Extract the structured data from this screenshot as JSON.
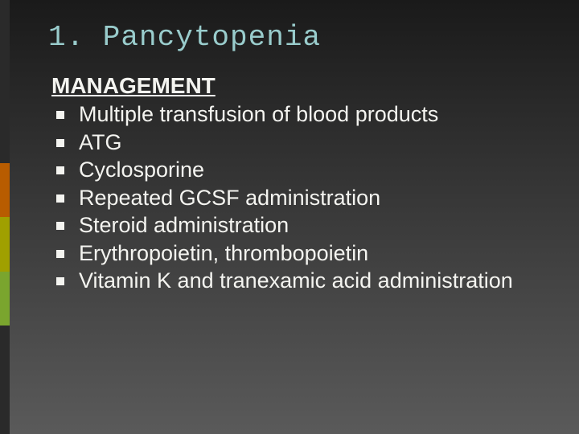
{
  "slide": {
    "title": "1. Pancytopenia",
    "title_color": "#99cccc",
    "subhead": "MANAGEMENT",
    "text_color": "#f4f4f0",
    "bullets": [
      "Multiple transfusion of blood products",
      "ATG",
      "Cyclosporine",
      "Repeated GCSF administration",
      "Steroid administration",
      "Erythropoietin, thrombopoietin",
      "Vitamin K and tranexamic acid administration"
    ],
    "accent_colors": [
      "#2a2a2a",
      "#2a2a2a",
      "#2a2a2a",
      "#b85c00",
      "#a0a000",
      "#7aa52e",
      "#2a2a2a",
      "#2a2a2a"
    ],
    "background_gradient": [
      "#1a1a1a",
      "#3a3a3a",
      "#5a5a5a"
    ],
    "title_font": "Consolas, Courier New, monospace",
    "body_font": "Segoe UI, Helvetica Neue, Arial, sans-serif",
    "title_fontsize": 36,
    "subhead_fontsize": 28,
    "bullet_fontsize": 27
  }
}
